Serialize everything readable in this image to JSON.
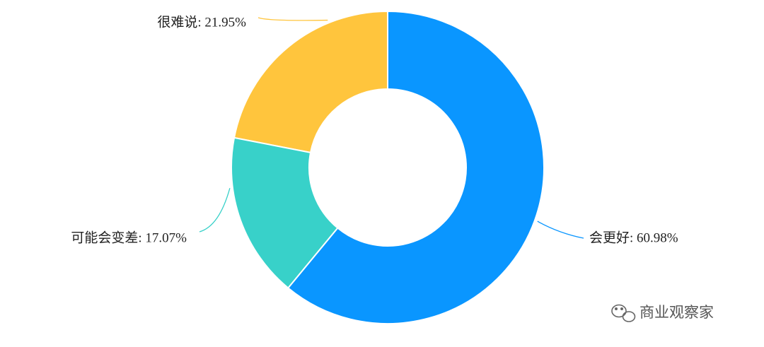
{
  "chart_data": {
    "type": "pie",
    "values": [
      60.98,
      17.07,
      21.95
    ],
    "value_labels": [
      "会更好: 60.98%",
      "可能会变差: 17.07%",
      "很难说: 21.95%"
    ],
    "colors": [
      "#0a96ff",
      "#38d1c9",
      "#ffc53d"
    ]
  },
  "watermark": "商业观察家"
}
